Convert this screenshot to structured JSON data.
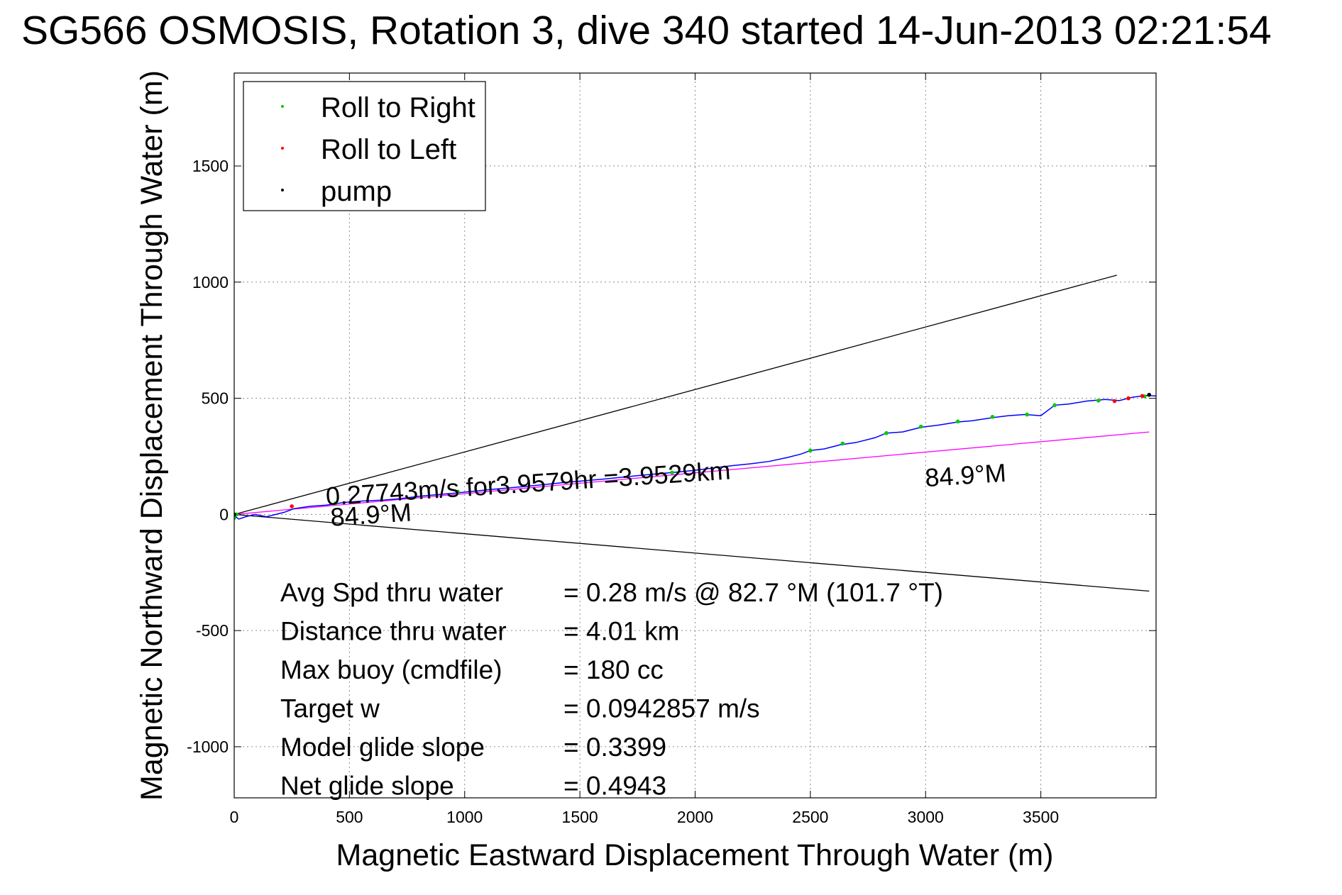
{
  "chart_data": {
    "type": "line",
    "title": "SG566 OSMOSIS, Rotation 3, dive 340 started 14-Jun-2013 02:21:54",
    "xlabel": "Magnetic Eastward Displacement Through Water (m)",
    "ylabel": "Magnetic Northward Displacement Through Water (m)",
    "xlim": [
      0,
      4000
    ],
    "ylim": [
      -1220,
      1900
    ],
    "x_ticks": [
      0,
      500,
      1000,
      1500,
      2000,
      2500,
      3000,
      3500
    ],
    "y_ticks": [
      -1000,
      -500,
      0,
      500,
      1000,
      1500
    ],
    "grid": true,
    "legend": {
      "placement": "top-left",
      "entries": [
        {
          "label": "Roll to Right",
          "color": "#00cc00"
        },
        {
          "label": "Roll to Left",
          "color": "#ff0000"
        },
        {
          "label": "pump",
          "color": "#000000"
        }
      ]
    },
    "series": [
      {
        "name": "track",
        "color": "#0000ff",
        "x": [
          0,
          20,
          50,
          90,
          140,
          180,
          220,
          260,
          330,
          400,
          480,
          560,
          650,
          720,
          800,
          880,
          960,
          1040,
          1120,
          1200,
          1280,
          1360,
          1440,
          1520,
          1600,
          1680,
          1760,
          1840,
          1920,
          2000,
          2080,
          2160,
          2240,
          2320,
          2400,
          2460,
          2500,
          2560,
          2630,
          2700,
          2780,
          2830,
          2900,
          2980,
          3060,
          3140,
          3200,
          3300,
          3360,
          3430,
          3500,
          3560,
          3620,
          3700,
          3780,
          3840,
          3900,
          3960,
          4000
        ],
        "y": [
          -5,
          -20,
          -10,
          0,
          -10,
          0,
          10,
          25,
          35,
          40,
          52,
          58,
          62,
          68,
          78,
          85,
          92,
          100,
          108,
          115,
          122,
          130,
          138,
          145,
          152,
          160,
          168,
          175,
          182,
          190,
          200,
          210,
          218,
          228,
          245,
          260,
          275,
          282,
          300,
          310,
          330,
          350,
          355,
          375,
          385,
          398,
          403,
          418,
          425,
          430,
          425,
          470,
          475,
          488,
          495,
          490,
          505,
          512,
          510
        ]
      }
    ],
    "reference_lines": [
      {
        "name": "",
        "color": "#000000",
        "x": [
          0,
          3830
        ],
        "y": [
          0,
          1030
        ]
      },
      {
        "name": "",
        "color": "#000000",
        "x": [
          0,
          3970
        ],
        "y": [
          0,
          -330
        ]
      },
      {
        "name": "",
        "color": "#ff00ff",
        "x": [
          0,
          3970
        ],
        "y": [
          0,
          355
        ]
      }
    ],
    "markers": {
      "roll_right": {
        "x": [
          0,
          10,
          440,
          970,
          1900,
          2500,
          2640,
          2830,
          2980,
          3140,
          3290,
          3440,
          3560,
          3750,
          3950
        ],
        "y": [
          -15,
          0,
          48,
          98,
          180,
          275,
          305,
          350,
          378,
          400,
          420,
          430,
          470,
          490,
          508
        ],
        "color": "#00cc00"
      },
      "roll_left": {
        "x": [
          250,
          3820,
          3880,
          3940
        ],
        "y": [
          35,
          488,
          500,
          510
        ],
        "color": "#ff0000"
      },
      "pump": {
        "x": [
          0,
          3970
        ],
        "y": [
          0,
          515
        ],
        "color": "#000000"
      }
    },
    "annotations": [
      {
        "text": "0.27743m/s for3.9579hr =3.9529km",
        "x": 400,
        "y": 40
      },
      {
        "text": "84.9°M",
        "x": 420,
        "y": -50
      },
      {
        "text": "84.9°M",
        "x": 3000,
        "y": 120
      }
    ],
    "stats": [
      {
        "label": "Avg Spd thru water",
        "value": "=  0.28 m/s @  82.7 °M (101.7 °T)"
      },
      {
        "label": "Distance thru water",
        "value": "=  4.01 km"
      },
      {
        "label": "Max buoy (cmdfile)",
        "value": "= 180 cc"
      },
      {
        "label": "Target w",
        "value": "= 0.0942857 m/s"
      },
      {
        "label": "Model glide slope",
        "value": "= 0.3399"
      },
      {
        "label": "Net glide slope",
        "value": "= 0.4943"
      }
    ]
  }
}
